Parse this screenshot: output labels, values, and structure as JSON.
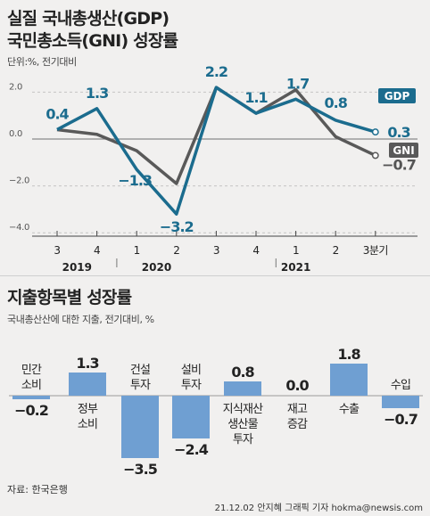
{
  "chart_data": [
    {
      "type": "line",
      "title": "실질 국내총생산(GDP)",
      "subtitle": "국민총소득(GNI) 성장률",
      "unit_note": "단위:%, 전기대비",
      "x_labels": [
        "3",
        "4",
        "1",
        "2",
        "3",
        "4",
        "1",
        "2",
        "3분기"
      ],
      "year_labels": [
        {
          "label": "2019",
          "under_index": 0.5
        },
        {
          "label": "2020",
          "under_index": 2.5
        },
        {
          "label": "2021",
          "under_index": 6
        }
      ],
      "y_ticks": [
        "2.0",
        "0.0",
        "-2.0",
        "-4.0"
      ],
      "y_tick_values": [
        2,
        0,
        -2,
        -4
      ],
      "ylim": [
        -4,
        3
      ],
      "series": [
        {
          "name": "GDP",
          "color": "#1b6c8e",
          "values": [
            0.4,
            1.3,
            -1.3,
            -3.2,
            2.2,
            1.1,
            1.7,
            0.8,
            0.3
          ],
          "labels": [
            "0.4",
            "1.3",
            "-1.3",
            "-3.2",
            "2.2",
            "1.1",
            "1.7",
            "0.8",
            "0.3"
          ]
        },
        {
          "name": "GNI",
          "color": "#595959",
          "values": [
            0.4,
            0.2,
            -0.5,
            -1.9,
            2.2,
            1.1,
            2.1,
            0.1,
            -0.7
          ],
          "end_label": "-0.7"
        }
      ]
    },
    {
      "type": "bar",
      "title": "지출항목별 성장률",
      "subtitle": "국내총산산에 대한 지출, 전기대비, %",
      "categories": [
        [
          "민간",
          "소비"
        ],
        [
          "정부",
          "소비"
        ],
        [
          "건설",
          "투자"
        ],
        [
          "설비",
          "투자"
        ],
        [
          "지식재산",
          "생산물",
          "투자"
        ],
        [
          "재고",
          "증감"
        ],
        [
          "수출"
        ],
        [
          "수입"
        ]
      ],
      "values": [
        -0.2,
        1.3,
        -3.5,
        -2.4,
        0.8,
        0.0,
        1.8,
        -0.7
      ],
      "value_labels": [
        "-0.2",
        "1.3",
        "-3.5",
        "-2.4",
        "0.8",
        "0.0",
        "1.8",
        "-0.7"
      ],
      "color": "#6f9fd2"
    }
  ],
  "footer": {
    "source": "자료: 한국은행",
    "credit": "21.12.02 안지혜 그래픽 기자 hokma@newsis.com"
  }
}
